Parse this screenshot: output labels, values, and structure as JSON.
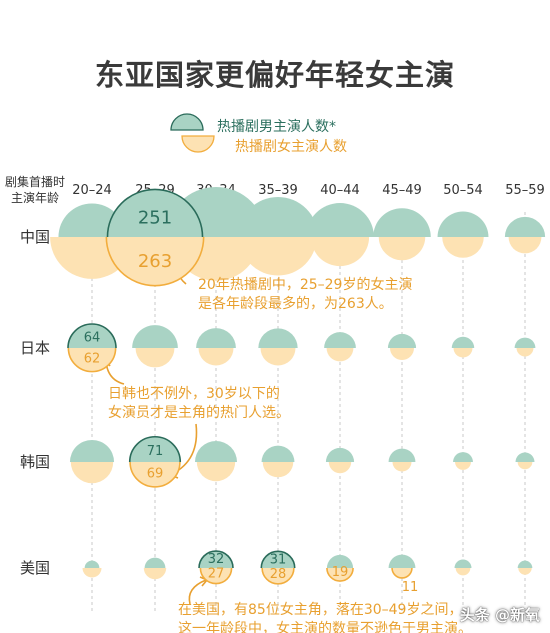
{
  "title": "东亚国家更偏好年轻女主演",
  "watermark": "头条 @新氧",
  "colors": {
    "male": "#a9d3c4",
    "male_stroke": "#2a6b5a",
    "female": "#fde2b3",
    "female_stroke": "#f2ad3d",
    "male_text": "#2b6f5e",
    "female_text": "#e8a030",
    "guide": "#c9c9c9",
    "annotation": "#e8a030"
  },
  "legend": {
    "male": "热播剧男主演人数*",
    "female": "热播剧女主演人数"
  },
  "axis_title": [
    "剧集首播时",
    "主演年龄"
  ],
  "chart_data": {
    "type": "proportional-symbol",
    "x_label": "剧集首播时主演年龄",
    "categories": [
      "20–24",
      "25–29",
      "30–34",
      "35–39",
      "40–44",
      "45–49",
      "50–54",
      "55–59"
    ],
    "countries": [
      "中国",
      "日本",
      "韩国",
      "美国"
    ],
    "series": [
      {
        "name": "热播剧男主演人数*",
        "half": "top"
      },
      {
        "name": "热播剧女主演人数",
        "half": "bottom"
      }
    ],
    "data": {
      "中国": {
        "male": [
          125,
          251,
          278,
          178,
          128,
          92,
          72,
          45
        ],
        "female": [
          195,
          263,
          212,
          165,
          94,
          60,
          48,
          30
        ]
      },
      "日本": {
        "male": [
          64,
          58,
          44,
          43,
          28,
          22,
          14,
          12
        ],
        "female": [
          62,
          42,
          34,
          34,
          20,
          16,
          10,
          8
        ]
      },
      "韩国": {
        "male": [
          54,
          71,
          49,
          30,
          22,
          20,
          11,
          10
        ],
        "female": [
          50,
          69,
          41,
          26,
          14,
          10,
          7,
          6
        ]
      },
      "美国": {
        "male": [
          6,
          12,
          32,
          31,
          19,
          20,
          8,
          6
        ],
        "female": [
          10,
          14,
          27,
          28,
          19,
          11,
          6,
          5
        ]
      }
    },
    "value_labels": [
      {
        "country": "中国",
        "index": 1,
        "male": "251",
        "female": "263"
      },
      {
        "country": "日本",
        "index": 0,
        "male": "64",
        "female": "62"
      },
      {
        "country": "韩国",
        "index": 1,
        "male": "71",
        "female": "69"
      },
      {
        "country": "美国",
        "index": 2,
        "male": "32",
        "female": "27"
      },
      {
        "country": "美国",
        "index": 3,
        "male": "31",
        "female": "28"
      },
      {
        "country": "美国",
        "index": 4,
        "male": "",
        "female": "19"
      },
      {
        "country": "美国",
        "index": 5,
        "male": "",
        "female": "11"
      }
    ],
    "annotations": [
      {
        "country": "中国",
        "lines": [
          "20年热播剧中，25–29岁的女主演",
          "是各年龄段最多的，为263人。"
        ]
      },
      {
        "country": "日本",
        "lines": [
          "日韩也不例外，30岁以下的",
          "女演员才是主角的热门人选。"
        ]
      },
      {
        "country": "美国",
        "lines": [
          "在美国，有85位女主角，落在30–49岁之间，",
          "这一年龄段中，女主演的数量不逊色于男主演。"
        ]
      }
    ]
  }
}
